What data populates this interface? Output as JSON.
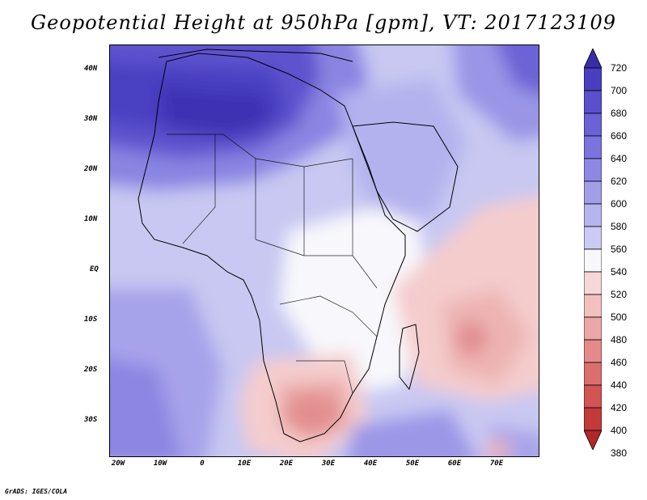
{
  "title": "Geopotential Height at 950hPa [gpm], VT: 2017123109",
  "credit": "GrADS: IGES/COLA",
  "map": {
    "variable": "Geopotential Height",
    "level": "950hPa",
    "units": "gpm",
    "valid_time": "2017123109",
    "lat_labels": [
      "40N",
      "30N",
      "20N",
      "10N",
      "EQ",
      "10S",
      "20S",
      "30S"
    ],
    "lon_labels": [
      "20W",
      "10W",
      "0",
      "10E",
      "20E",
      "30E",
      "40E",
      "50E",
      "60E",
      "70E"
    ]
  },
  "colorbar": {
    "levels": [
      "720",
      "700",
      "680",
      "660",
      "640",
      "620",
      "600",
      "580",
      "560",
      "540",
      "520",
      "500",
      "480",
      "460",
      "440",
      "420",
      "400",
      "380"
    ],
    "colors": [
      "#3a2ca8",
      "#4a3ec0",
      "#5a50cc",
      "#6a62d6",
      "#7c74de",
      "#8e88e4",
      "#a29ee8",
      "#b6b4ee",
      "#cacaf4",
      "#f8f8fc",
      "#f6d8d8",
      "#f2c0c0",
      "#eca6a6",
      "#e48a8a",
      "#dc6e6e",
      "#d25454",
      "#c43a3a",
      "#b02828"
    ]
  }
}
